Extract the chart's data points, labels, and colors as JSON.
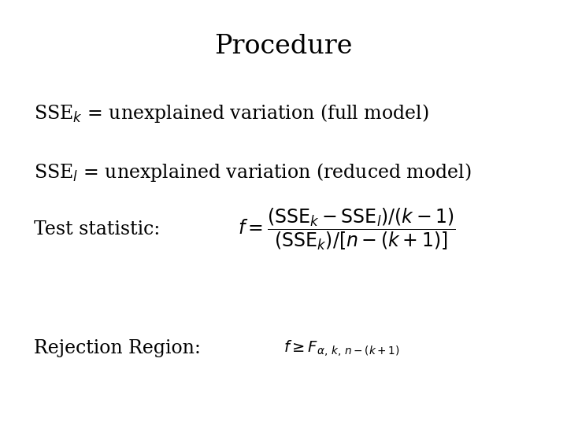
{
  "title": "Procedure",
  "title_fontsize": 24,
  "background_color": "#ffffff",
  "text_color": "#000000",
  "line1_rest": " = unexplained variation (full model)",
  "line2_rest": " = unexplained variation (reduced model)",
  "line3_label": "Test statistic:  ",
  "line4_label": "Rejection Region:  ",
  "text_fontsize": 17,
  "formula_fontsize": 17,
  "small_formula_fontsize": 14
}
